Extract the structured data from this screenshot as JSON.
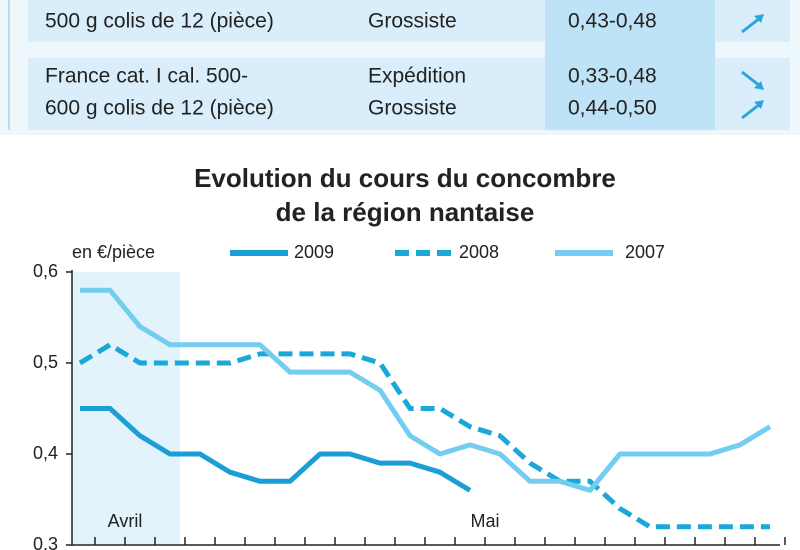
{
  "table": {
    "rows": [
      {
        "product": [
          "500 g colis de 12 (pièce)"
        ],
        "stage": [
          "Grossiste"
        ],
        "price": [
          "0,43-0,48"
        ]
      },
      {
        "product": [
          "France cat. I cal. 500-",
          "600 g colis de 12 (pièce)"
        ],
        "stage": [
          "Expédition",
          "Grossiste"
        ],
        "price": [
          "0,33-0,48",
          "0,44-0,50"
        ]
      }
    ]
  },
  "chart_data": {
    "type": "line",
    "title": [
      "Evolution du cours du concombre",
      "de la région nantaise"
    ],
    "y_label": "en €/pièce",
    "categories": [
      null,
      "Avril",
      null,
      null,
      null,
      null,
      null,
      null,
      null,
      null,
      null,
      null,
      null,
      "Mai",
      null,
      null,
      null,
      null,
      null,
      null,
      null,
      null,
      null,
      null
    ],
    "series": [
      {
        "name": "2009",
        "color": "#1a9ed6",
        "style": "solid",
        "values": [
          0.45,
          0.45,
          0.42,
          0.4,
          0.4,
          0.38,
          0.37,
          0.37,
          0.4,
          0.4,
          0.39,
          0.39,
          0.38,
          0.36,
          null,
          null,
          null,
          null,
          null,
          null,
          null,
          null,
          null,
          null
        ]
      },
      {
        "name": "2008",
        "color": "#1aa8d8",
        "style": "dashed",
        "values": [
          0.5,
          0.52,
          0.5,
          0.5,
          0.5,
          0.5,
          0.51,
          0.51,
          0.51,
          0.51,
          0.5,
          0.45,
          0.45,
          0.43,
          0.42,
          0.39,
          0.37,
          0.37,
          0.34,
          0.32,
          0.32,
          0.32,
          0.32,
          0.32
        ]
      },
      {
        "name": "2007",
        "color": "#72cdf0",
        "style": "solid",
        "values": [
          0.58,
          0.58,
          0.54,
          0.52,
          0.52,
          0.52,
          0.52,
          0.49,
          0.49,
          0.49,
          0.47,
          0.42,
          0.4,
          0.41,
          0.4,
          0.37,
          0.37,
          0.36,
          0.4,
          0.4,
          0.4,
          0.4,
          0.41,
          0.43
        ]
      }
    ],
    "ylim": [
      0.3,
      0.6
    ],
    "yticks": [
      {
        "value": 0.3,
        "label": "0,3"
      },
      {
        "value": 0.4,
        "label": "0,4"
      },
      {
        "value": 0.5,
        "label": "0,5"
      },
      {
        "value": 0.6,
        "label": "0,6"
      }
    ]
  }
}
